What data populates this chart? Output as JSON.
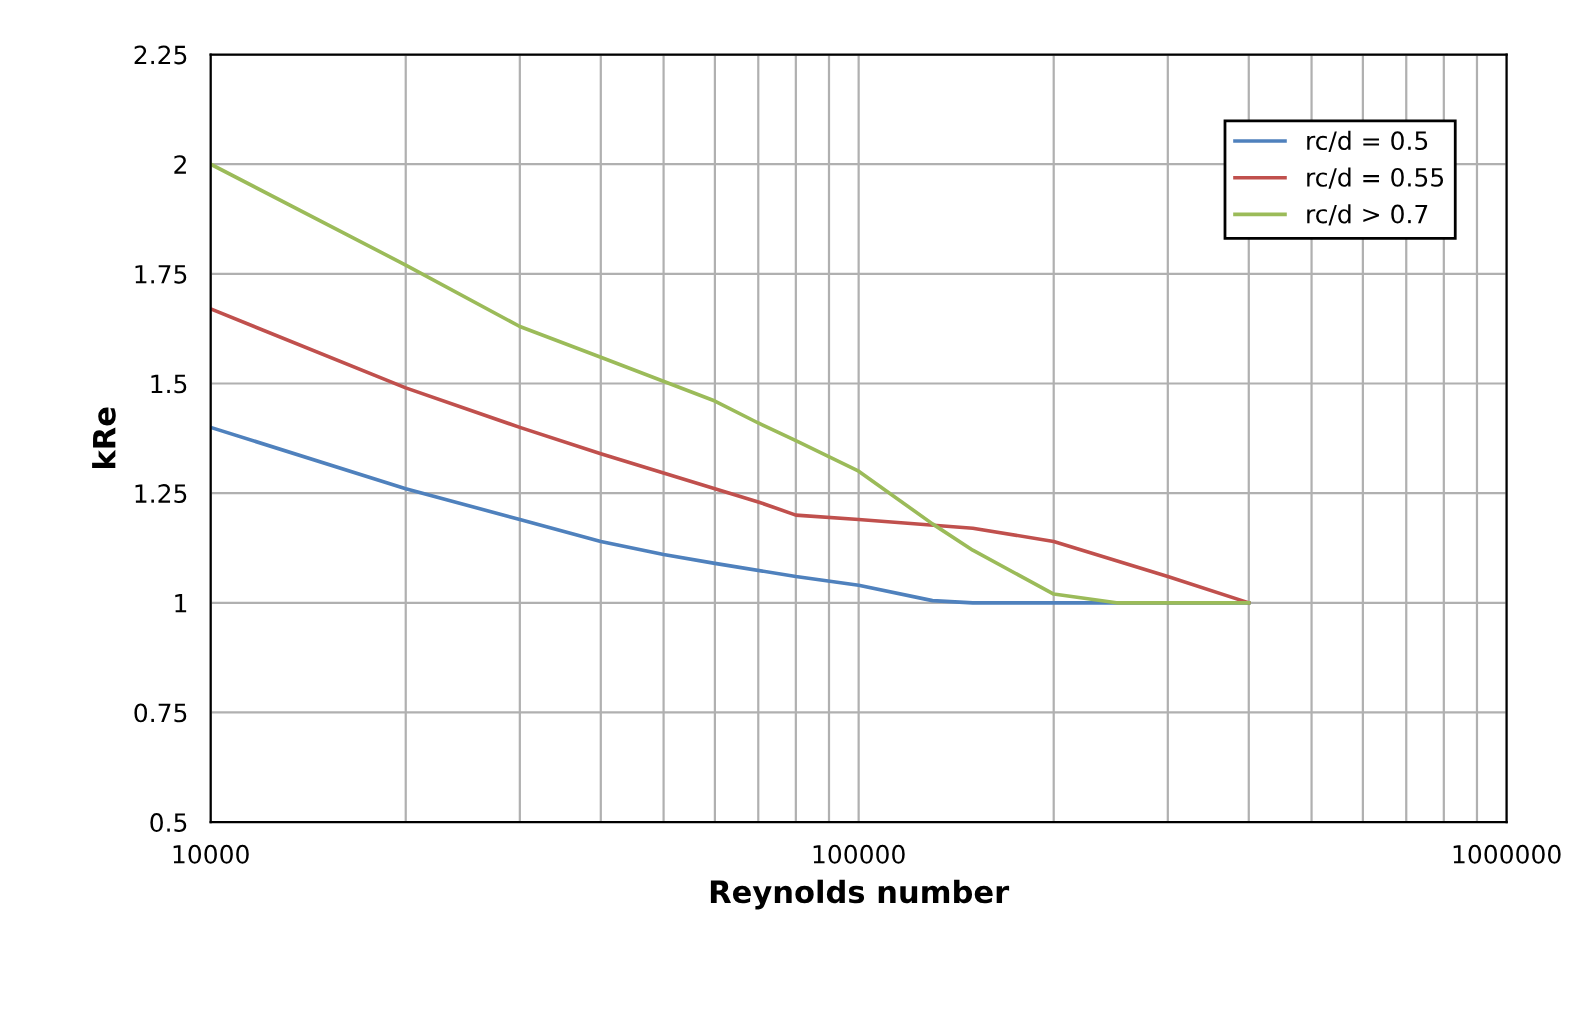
{
  "chart_data": {
    "type": "line",
    "xlabel": "Reynolds number",
    "ylabel": "kRe",
    "log": "x",
    "xlim": [
      10000,
      1000000
    ],
    "xticks": [
      10000,
      100000,
      1000000
    ],
    "ylim": [
      0.5,
      2.25
    ],
    "yticks": [
      0.5,
      0.75,
      1,
      1.25,
      1.5,
      1.75,
      2,
      2.25
    ],
    "grid": true,
    "legend": "top right",
    "marker": "none",
    "line_style": "solid",
    "series": [
      {
        "name": "rc/d = 0.5",
        "color": "#4f81bd",
        "x": [
          10000,
          20000,
          30000,
          40000,
          50000,
          60000,
          80000,
          100000,
          130000,
          150000,
          200000,
          400000
        ],
        "values": [
          1.4,
          1.26,
          1.19,
          1.14,
          1.11,
          1.09,
          1.06,
          1.04,
          1.005,
          1.0,
          1.0,
          1.0
        ]
      },
      {
        "name": "rc/d = 0.55",
        "color": "#c0504d",
        "x": [
          10000,
          20000,
          30000,
          40000,
          60000,
          70000,
          80000,
          100000,
          150000,
          200000,
          300000,
          400000
        ],
        "values": [
          1.67,
          1.49,
          1.4,
          1.34,
          1.26,
          1.23,
          1.2,
          1.19,
          1.17,
          1.14,
          1.06,
          1.0
        ]
      },
      {
        "name": "rc/d > 0.7",
        "color": "#9bbb59",
        "x": [
          10000,
          20000,
          30000,
          40000,
          60000,
          70000,
          80000,
          100000,
          130000,
          150000,
          200000,
          250000,
          400000
        ],
        "values": [
          2.0,
          1.77,
          1.63,
          1.56,
          1.46,
          1.41,
          1.37,
          1.3,
          1.18,
          1.12,
          1.02,
          1.0,
          1.0
        ]
      }
    ]
  }
}
